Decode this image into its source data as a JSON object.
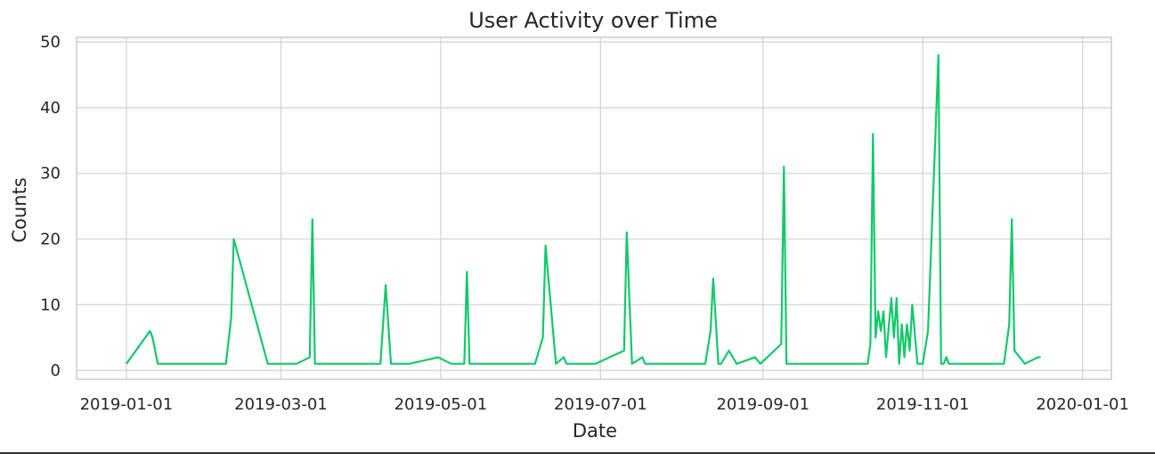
{
  "chart_data": {
    "type": "line",
    "title": "User Activity over Time",
    "xlabel": "Date",
    "ylabel": "Counts",
    "xlim": [
      "2018-12-13",
      "2020-01-12"
    ],
    "ylim": [
      -1.35,
      50.7
    ],
    "grid": true,
    "legend": "none",
    "x_ticks": [
      "2019-01-01",
      "2019-03-01",
      "2019-05-01",
      "2019-07-01",
      "2019-09-01",
      "2019-11-01",
      "2020-01-01"
    ],
    "y_ticks": [
      0,
      10,
      20,
      30,
      40,
      50
    ],
    "colors": {
      "series": "#12c96a"
    },
    "series": [
      {
        "x": [
          "2019-01-01",
          "2019-01-10",
          "2019-01-11",
          "2019-01-13",
          "2019-02-08",
          "2019-02-10",
          "2019-02-11",
          "2019-02-24",
          "2019-03-07",
          "2019-03-12",
          "2019-03-13",
          "2019-03-14",
          "2019-04-08",
          "2019-04-10",
          "2019-04-12",
          "2019-04-19",
          "2019-04-30",
          "2019-05-05",
          "2019-05-10",
          "2019-05-11",
          "2019-05-12",
          "2019-06-06",
          "2019-06-09",
          "2019-06-10",
          "2019-06-14",
          "2019-06-17",
          "2019-06-18",
          "2019-06-29",
          "2019-07-10",
          "2019-07-11",
          "2019-07-13",
          "2019-07-17",
          "2019-07-18",
          "2019-08-10",
          "2019-08-12",
          "2019-08-13",
          "2019-08-15",
          "2019-08-16",
          "2019-08-19",
          "2019-08-22",
          "2019-08-29",
          "2019-08-31",
          "2019-09-08",
          "2019-09-09",
          "2019-09-10",
          "2019-10-11",
          "2019-10-12",
          "2019-10-13",
          "2019-10-14",
          "2019-10-15",
          "2019-10-16",
          "2019-10-17",
          "2019-10-18",
          "2019-10-20",
          "2019-10-21",
          "2019-10-22",
          "2019-10-23",
          "2019-10-24",
          "2019-10-25",
          "2019-10-26",
          "2019-10-27",
          "2019-10-28",
          "2019-10-30",
          "2019-11-01",
          "2019-11-03",
          "2019-11-07",
          "2019-11-08",
          "2019-11-09",
          "2019-11-10",
          "2019-11-11",
          "2019-11-20",
          "2019-12-02",
          "2019-12-04",
          "2019-12-05",
          "2019-12-06",
          "2019-12-10",
          "2019-12-15",
          "2019-12-16"
        ],
        "y": [
          1,
          6,
          5,
          1,
          1,
          8,
          20,
          1,
          1,
          2,
          23,
          1,
          1,
          13,
          1,
          1,
          2,
          1,
          1,
          15,
          1,
          1,
          5,
          19,
          1,
          2,
          1,
          1,
          3,
          21,
          1,
          2,
          1,
          1,
          6,
          14,
          1,
          1,
          3,
          1,
          2,
          1,
          4,
          31,
          1,
          1,
          4,
          36,
          5,
          9,
          6,
          9,
          2,
          11,
          5,
          11,
          1,
          7,
          2,
          7,
          3,
          10,
          1,
          1,
          6,
          48,
          1,
          1,
          2,
          1,
          1,
          1,
          7,
          23,
          3,
          1,
          2,
          2
        ]
      }
    ]
  }
}
